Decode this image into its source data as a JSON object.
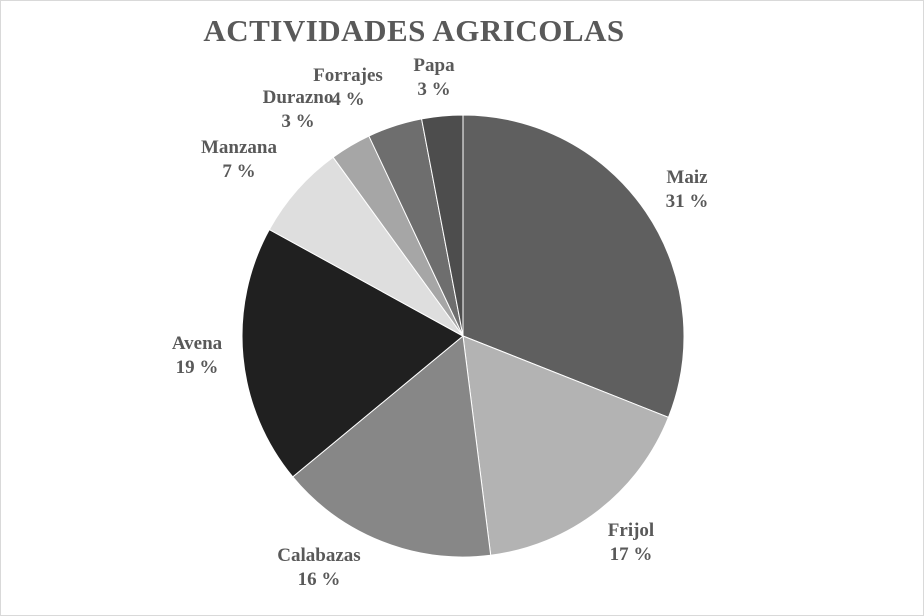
{
  "chart_data": {
    "type": "pie",
    "title": "ACTIVIDADES  AGRICOLAS",
    "slices": [
      {
        "label": "Maiz",
        "value": 31,
        "value_label": "31 %",
        "color": "#5f5f5f"
      },
      {
        "label": "Frijol",
        "value": 17,
        "value_label": "17 %",
        "color": "#b3b3b3"
      },
      {
        "label": "Calabazas",
        "value": 16,
        "value_label": "16 %",
        "color": "#878787"
      },
      {
        "label": "Avena",
        "value": 19,
        "value_label": "19 %",
        "color": "#202020"
      },
      {
        "label": "Manzana",
        "value": 7,
        "value_label": "7 %",
        "color": "#dedede"
      },
      {
        "label": "Durazno",
        "value": 3,
        "value_label": "3 %",
        "color": "#a6a6a6"
      },
      {
        "label": "Forrajes",
        "value": 4,
        "value_label": "4 %",
        "color": "#6e6e6e"
      },
      {
        "label": "Papa",
        "value": 3,
        "value_label": "3 %",
        "color": "#4d4d4d"
      }
    ],
    "legend": "none",
    "data_labels": "outside"
  }
}
